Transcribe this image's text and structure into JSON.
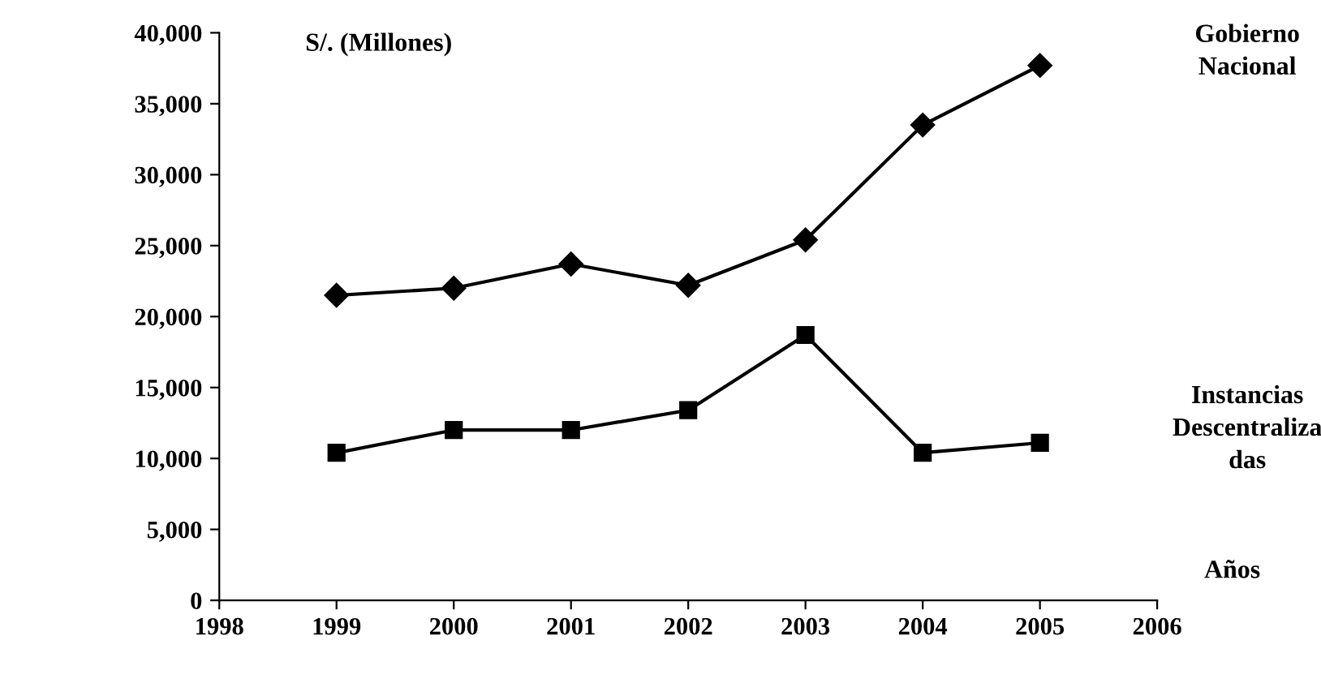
{
  "chart_data": {
    "type": "line",
    "ylabel": "S/. (Millones)",
    "xlabel": "Años",
    "x": [
      1999,
      2000,
      2001,
      2002,
      2003,
      2004,
      2005
    ],
    "series": [
      {
        "name": "Gobierno\nNacional",
        "color": "#000000",
        "marker": "diamond",
        "values": [
          21500,
          22000,
          23700,
          22200,
          25400,
          33500,
          37700
        ]
      },
      {
        "name": "Instancias\nDescentraliza\ndas",
        "color": "#000000",
        "marker": "square",
        "values": [
          10400,
          12000,
          12000,
          13400,
          18700,
          10400,
          11100
        ]
      }
    ],
    "xlim": [
      1998,
      2006
    ],
    "xticks": [
      1998,
      1999,
      2000,
      2001,
      2002,
      2003,
      2004,
      2005,
      2006
    ],
    "ylim": [
      0,
      40000
    ],
    "yticks": [
      0,
      {
        "value": 5000,
        "label": "5,000"
      },
      {
        "value": 10000,
        "label": "10,000"
      },
      {
        "value": 15000,
        "label": "15,000"
      },
      {
        "value": 20000,
        "label": "20,000"
      },
      {
        "value": 25000,
        "label": "25,000"
      },
      {
        "value": 30000,
        "label": "30,000"
      },
      {
        "value": 35000,
        "label": "35,000"
      },
      {
        "value": 40000,
        "label": "40,000"
      }
    ],
    "grid": false,
    "legend": false,
    "line_style": "solid"
  }
}
